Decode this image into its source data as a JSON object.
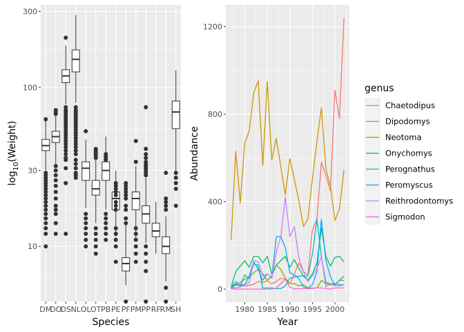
{
  "chart_data": [
    {
      "type": "boxplot",
      "title": "",
      "xlabel": "Species",
      "ylabel_prefix": "log",
      "ylabel_sub": "10",
      "ylabel_suffix": "(Weight)",
      "yscale": "log10",
      "ylim": [
        4.5,
        330
      ],
      "yticks": [
        10,
        30,
        100,
        300
      ],
      "ytick_labels": [
        "10",
        "30",
        "100",
        "300"
      ],
      "categories": [
        "DM",
        "DO",
        "DS",
        "NL",
        "OL",
        "OT",
        "PB",
        "PE",
        "PF",
        "PM",
        "PP",
        "RF",
        "RM",
        "SH"
      ],
      "boxes": [
        {
          "q1": 40,
          "median": 43,
          "q3": 47,
          "lower": 30,
          "upper": 62,
          "outliers": [
            63,
            29,
            28,
            27,
            26,
            25,
            24,
            23,
            22,
            21,
            20,
            19,
            18,
            17,
            16,
            15,
            14,
            13,
            12,
            10
          ]
        },
        {
          "q1": 45,
          "median": 49,
          "q3": 53,
          "lower": 33,
          "upper": 67,
          "outliers": [
            72,
            70,
            68,
            32,
            30,
            28,
            26,
            24,
            22,
            20,
            18,
            17,
            16,
            14,
            12
          ]
        },
        {
          "q1": 107,
          "median": 118,
          "q3": 129,
          "lower": 78,
          "upper": 183,
          "outliers": [
            205,
            75,
            72,
            70,
            68,
            66,
            64,
            62,
            60,
            58,
            56,
            54,
            52,
            50,
            48,
            46,
            44,
            42,
            40,
            38,
            36,
            35,
            31,
            25,
            12
          ]
        },
        {
          "q1": 125,
          "median": 150,
          "q3": 172,
          "lower": 80,
          "upper": 285,
          "outliers": [
            75,
            72,
            70,
            68,
            66,
            64,
            62,
            60,
            58,
            56,
            54,
            52,
            50,
            48,
            46,
            44,
            42,
            40,
            38,
            35,
            33,
            31,
            29,
            28,
            27
          ]
        },
        {
          "q1": 26,
          "median": 31,
          "q3": 34,
          "lower": 17.5,
          "upper": 47,
          "outliers": [
            53,
            16,
            15,
            14,
            13,
            12,
            11,
            10
          ]
        },
        {
          "q1": 21,
          "median": 23,
          "q3": 26,
          "lower": 14,
          "upper": 37,
          "outliers": [
            41,
            40,
            39,
            38,
            37,
            36,
            13,
            12,
            11,
            10,
            9
          ]
        },
        {
          "q1": 26,
          "median": 30,
          "q3": 34,
          "lower": 17,
          "upper": 49,
          "outliers": [
            38,
            37,
            36,
            35,
            16,
            15,
            14,
            13,
            12,
            11
          ]
        },
        {
          "q1": 17,
          "median": 20,
          "q3": 22,
          "lower": 11.5,
          "upper": 30,
          "outliers": [
            25,
            24,
            23,
            22,
            21,
            19,
            18,
            17,
            13,
            12,
            11,
            10,
            8
          ]
        },
        {
          "q1": 7,
          "median": 7.8,
          "q3": 8.5,
          "lower": 5.7,
          "upper": 14,
          "outliers": [
            25,
            24,
            23,
            22,
            21,
            20,
            18,
            17,
            15,
            14,
            4.5
          ]
        },
        {
          "q1": 17,
          "median": 20,
          "q3": 22,
          "lower": 11,
          "upper": 32,
          "outliers": [
            46,
            34,
            13,
            12,
            11,
            10,
            9,
            8
          ]
        },
        {
          "q1": 14,
          "median": 16,
          "q3": 18,
          "lower": 10.5,
          "upper": 27,
          "outliers": [
            75,
            41,
            38,
            36,
            34,
            33,
            32,
            31,
            30,
            29,
            28,
            10,
            9,
            8,
            7,
            4.5
          ]
        },
        {
          "q1": 11.5,
          "median": 12.5,
          "q3": 14,
          "lower": 9,
          "upper": 19
        },
        {
          "q1": 9,
          "median": 10,
          "q3": 11.5,
          "lower": 6,
          "upper": 15.5,
          "outliers": [
            29,
            20,
            19,
            18,
            17,
            5.5,
            4.5
          ]
        },
        {
          "q1": 55,
          "median": 70,
          "q3": 82,
          "lower": 28,
          "upper": 128,
          "outliers": [
            29,
            27,
            25,
            23,
            18
          ]
        }
      ]
    },
    {
      "type": "line",
      "title": "",
      "xlabel": "Year",
      "ylabel": "Abundance",
      "xlim": [
        1975.8,
        2003.2
      ],
      "ylim": [
        -60,
        1300
      ],
      "xticks": [
        1980,
        1985,
        1990,
        1995,
        2000
      ],
      "xtick_labels": [
        "1980",
        "1985",
        "1990",
        "1995",
        "2000"
      ],
      "yticks": [
        0,
        400,
        800,
        1200
      ],
      "ytick_labels": [
        "0",
        "400",
        "800",
        "1200"
      ],
      "x": [
        1977,
        1978,
        1979,
        1980,
        1981,
        1982,
        1983,
        1984,
        1985,
        1986,
        1987,
        1988,
        1989,
        1990,
        1991,
        1992,
        1993,
        1994,
        1995,
        1996,
        1997,
        1998,
        1999,
        2000,
        2001,
        2002
      ],
      "legend_title": "genus",
      "legend_position": "right",
      "series": [
        {
          "name": "Chaetodipus",
          "color": "#F8766D",
          "values": [
            2,
            20,
            15,
            15,
            18,
            22,
            35,
            30,
            38,
            25,
            35,
            50,
            45,
            25,
            70,
            120,
            80,
            65,
            270,
            320,
            580,
            520,
            450,
            910,
            780,
            1240
          ]
        },
        {
          "name": "Dipodomys",
          "color": "#CD9600",
          "values": [
            225,
            630,
            394,
            667,
            724,
            898,
            952,
            565,
            949,
            590,
            689,
            560,
            432,
            597,
            502,
            406,
            286,
            321,
            502,
            676,
            829,
            549,
            470,
            314,
            368,
            546
          ]
        },
        {
          "name": "Neotoma",
          "color": "#7CAE00",
          "values": [
            5,
            25,
            30,
            45,
            55,
            75,
            90,
            70,
            40,
            60,
            110,
            90,
            50,
            25,
            25,
            15,
            20,
            5,
            5,
            5,
            40,
            25,
            20,
            20,
            40,
            40
          ]
        },
        {
          "name": "Onychomys",
          "color": "#00BE67",
          "values": [
            10,
            80,
            105,
            130,
            100,
            150,
            150,
            120,
            150,
            70,
            110,
            130,
            150,
            100,
            135,
            95,
            60,
            40,
            70,
            120,
            280,
            150,
            105,
            145,
            150,
            125
          ]
        },
        {
          "name": "Perognathus",
          "color": "#00BFC4",
          "values": [
            10,
            35,
            15,
            65,
            50,
            115,
            110,
            5,
            5,
            5,
            2,
            2,
            15,
            50,
            55,
            60,
            60,
            60,
            160,
            320,
            150,
            30,
            25,
            25,
            20,
            20
          ]
        },
        {
          "name": "Peromyscus",
          "color": "#00A9FF",
          "values": [
            5,
            20,
            20,
            20,
            60,
            125,
            90,
            40,
            70,
            50,
            240,
            240,
            190,
            75,
            65,
            50,
            10,
            5,
            20,
            80,
            320,
            130,
            55,
            20,
            40,
            60
          ]
        },
        {
          "name": "Reithrodontomys",
          "color": "#C77CFF",
          "values": [
            5,
            5,
            10,
            20,
            30,
            130,
            125,
            60,
            70,
            50,
            170,
            240,
            420,
            240,
            285,
            145,
            80,
            35,
            60,
            95,
            150,
            10,
            25,
            15,
            15,
            20
          ]
        },
        {
          "name": "Sigmodon",
          "color": "#FF61CC",
          "values": [
            0,
            0,
            0,
            0,
            0,
            0,
            0,
            0,
            0,
            0,
            5,
            25,
            45,
            10,
            0,
            2,
            2,
            2,
            3,
            5,
            5,
            2,
            0,
            5,
            5,
            5
          ]
        }
      ]
    }
  ]
}
